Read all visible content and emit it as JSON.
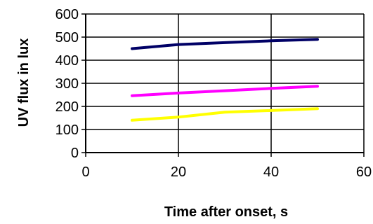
{
  "chart_data": {
    "type": "line",
    "xlabel": "Time after onset, s",
    "ylabel": "UV flux in lux",
    "xlim": [
      0,
      60
    ],
    "ylim": [
      0,
      600
    ],
    "xticks": [
      "0",
      "20",
      "40",
      "60"
    ],
    "yticks": [
      "0",
      "100",
      "200",
      "300",
      "400",
      "500",
      "600"
    ],
    "grid": true,
    "legend": "none",
    "series": [
      {
        "color": "#000066",
        "x": [
          10,
          20,
          30,
          40,
          50
        ],
        "y": [
          450,
          468,
          476,
          484,
          490
        ]
      },
      {
        "color": "#ff00ff",
        "x": [
          10,
          20,
          30,
          40,
          50
        ],
        "y": [
          246,
          258,
          268,
          278,
          287
        ]
      },
      {
        "color": "#ffff00",
        "x": [
          10,
          20,
          30,
          40,
          50
        ],
        "y": [
          140,
          154,
          175,
          182,
          190
        ]
      }
    ]
  }
}
